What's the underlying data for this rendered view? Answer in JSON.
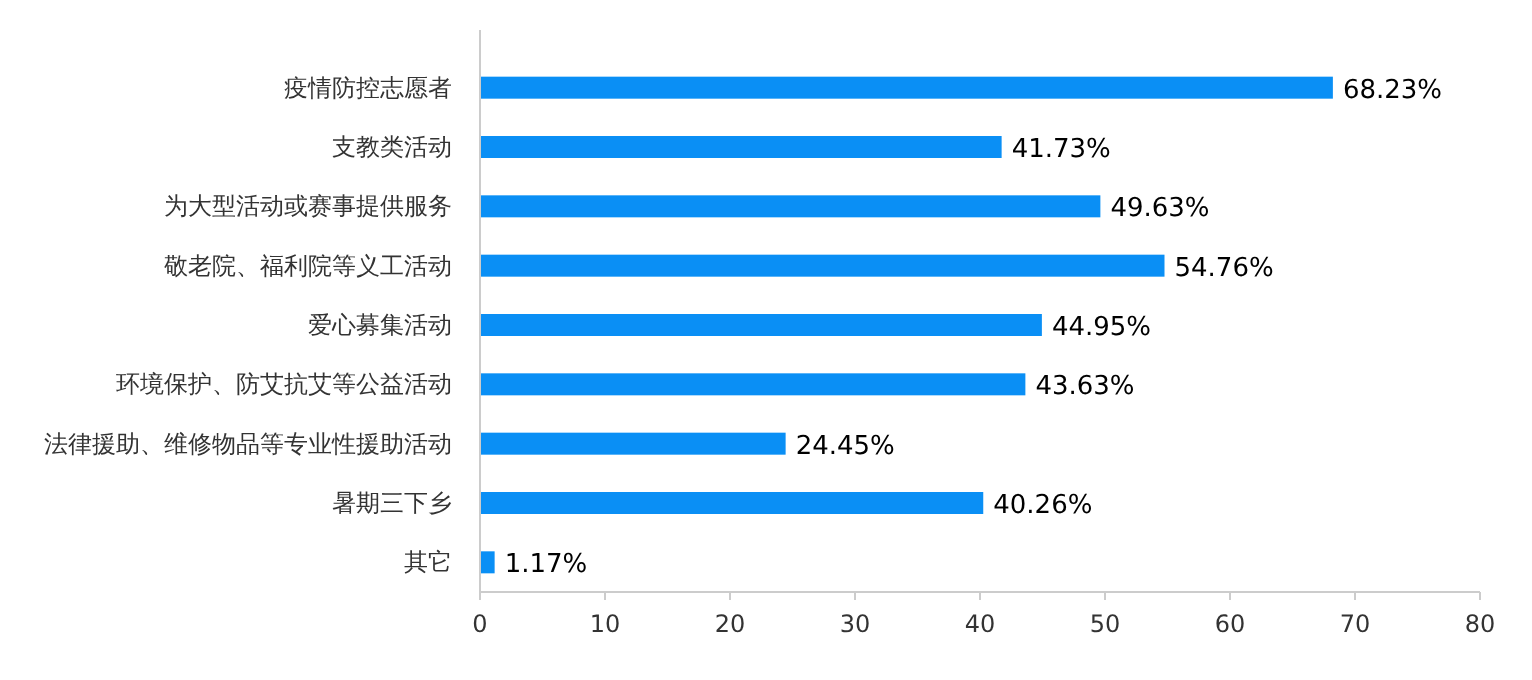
{
  "chart_data": {
    "type": "bar",
    "orientation": "horizontal",
    "categories": [
      "疫情防控志愿者",
      "支教类活动",
      "为大型活动或赛事提供服务",
      "敬老院、福利院等义工活动",
      "爱心募集活动",
      "环境保护、防艾抗艾等公益活动",
      "法律援助、维修物品等专业性援助活动",
      "暑期三下乡",
      "其它"
    ],
    "values": [
      68.23,
      41.73,
      49.63,
      54.76,
      44.95,
      43.63,
      24.45,
      40.26,
      1.17
    ],
    "value_labels": [
      "68.23%",
      "41.73%",
      "49.63%",
      "54.76%",
      "44.95%",
      "43.63%",
      "24.45%",
      "40.26%",
      "1.17%"
    ],
    "color": "#0a8ff5",
    "xlim": [
      0,
      80
    ],
    "xticks": [
      0,
      10,
      20,
      30,
      40,
      50,
      60,
      70,
      80
    ]
  }
}
